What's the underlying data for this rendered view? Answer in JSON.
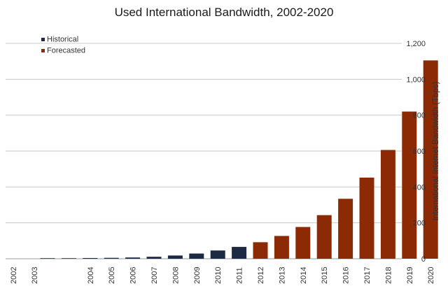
{
  "chart_data": {
    "type": "bar",
    "title": "Used International Bandwidth, 2002-2020",
    "ylabel": "International Internet Bandwidth (Tbps)",
    "xlabel": "",
    "ylim": [
      0,
      1200
    ],
    "yticks": [
      0,
      200,
      400,
      600,
      800,
      1000,
      1200
    ],
    "ytick_labels": [
      "0",
      "200",
      "400",
      "600",
      "800",
      "1,000",
      "1,200"
    ],
    "y_axis_side": "right",
    "grid": true,
    "legend_position": "top-left",
    "categories": [
      "2002",
      "2003",
      "2004",
      "2005",
      "2006",
      "2007",
      "2008",
      "2009",
      "2010",
      "2011",
      "2012",
      "2013",
      "2014",
      "2015",
      "2016",
      "2017",
      "2018",
      "2019",
      "2020"
    ],
    "series": [
      {
        "name": "Historical",
        "color": "#1c2a44",
        "values": [
          1,
          2,
          4,
          5,
          7,
          11,
          18,
          29,
          46,
          66,
          null,
          null,
          null,
          null,
          null,
          null,
          null,
          null,
          null
        ]
      },
      {
        "name": "Forecasted",
        "color": "#8b2a05",
        "values": [
          null,
          null,
          null,
          null,
          null,
          null,
          null,
          null,
          null,
          null,
          92,
          127,
          177,
          243,
          334,
          452,
          606,
          820,
          1105
        ]
      }
    ]
  }
}
